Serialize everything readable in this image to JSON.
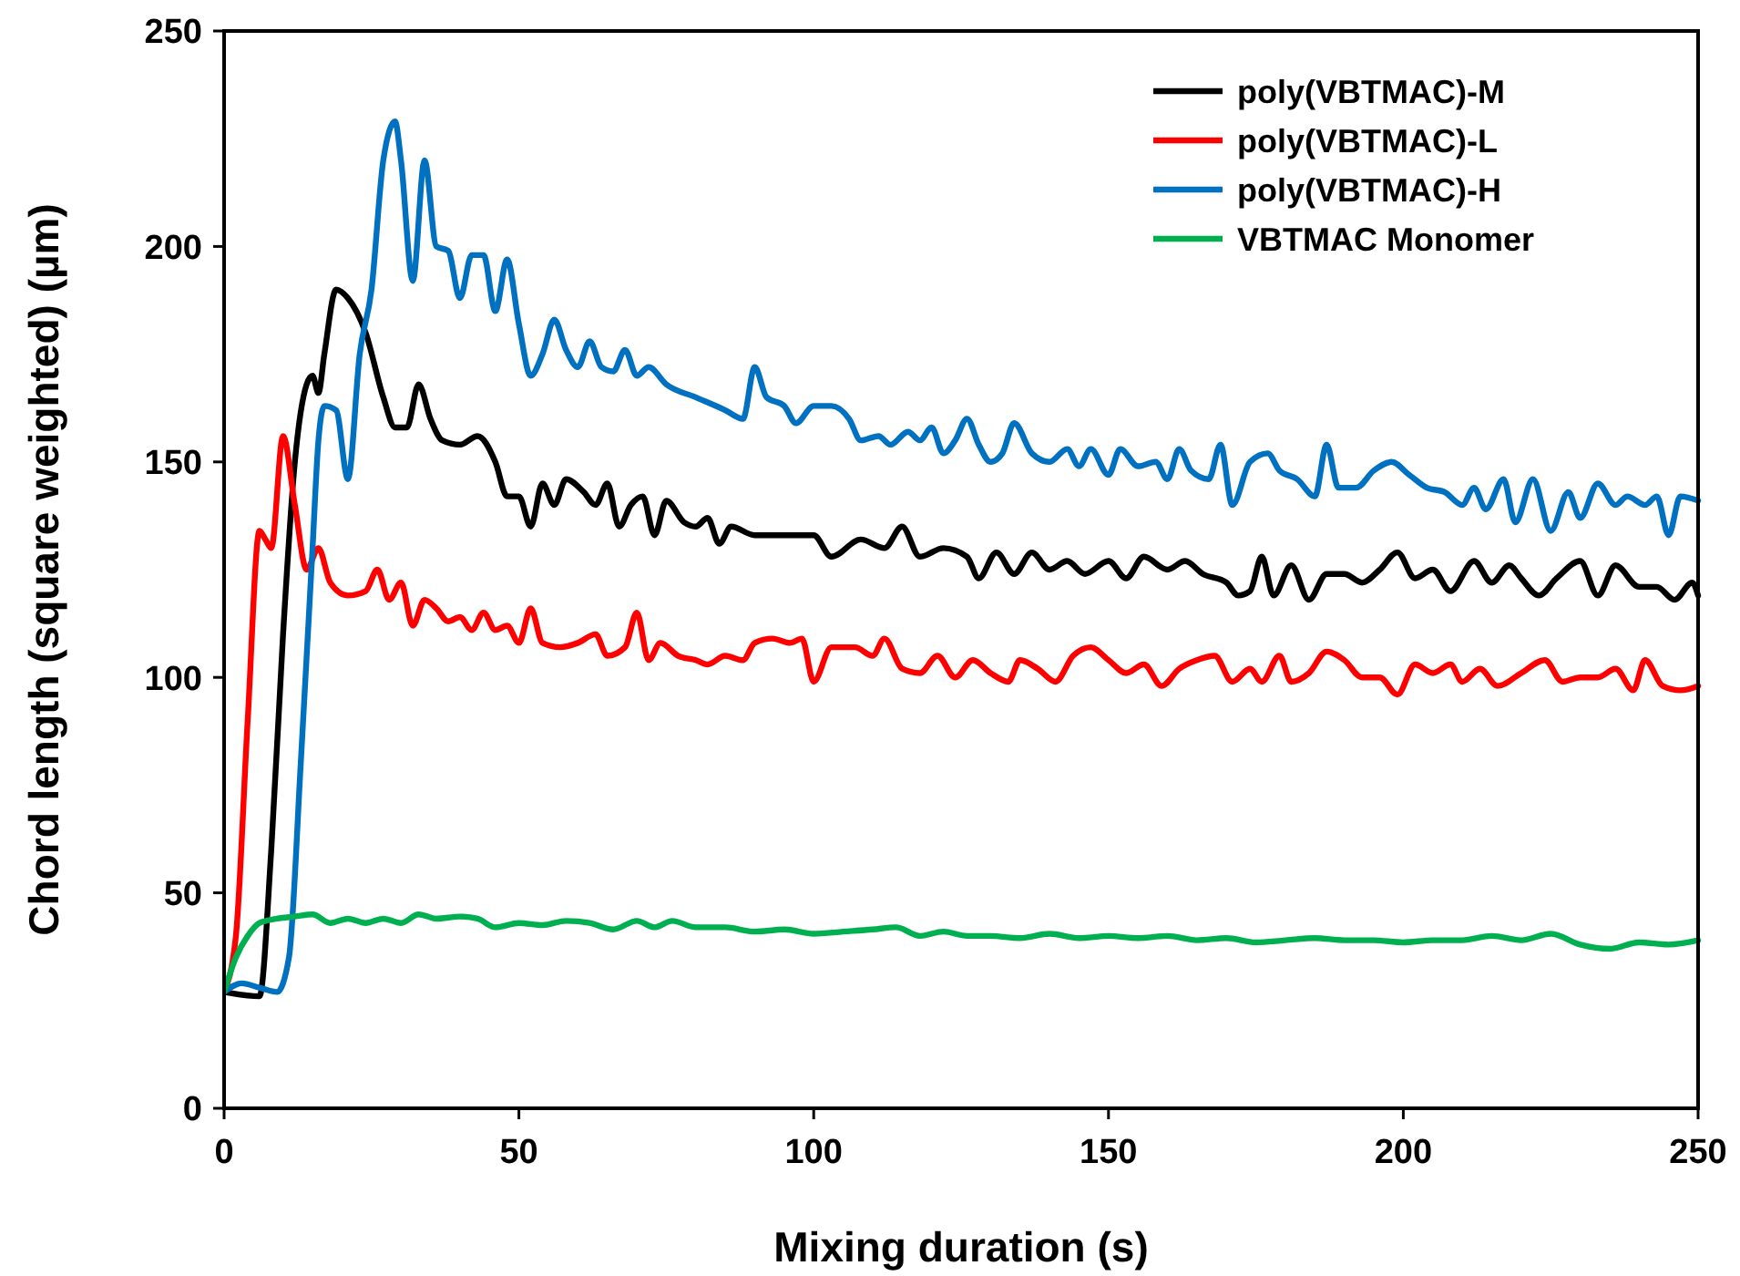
{
  "chart_data": {
    "type": "line",
    "xlabel": "Mixing duration (s)",
    "ylabel": "Chord length (square weighted) (µm)",
    "xlim": [
      0,
      250
    ],
    "xticks": [
      0,
      50,
      100,
      150,
      200,
      250
    ],
    "ylim": [
      0,
      250
    ],
    "yticks": [
      0,
      50,
      100,
      150,
      200,
      250
    ],
    "grid": false,
    "legend": "top right",
    "marker": "none",
    "line_style": "solid",
    "series": [
      {
        "name": "poly(VBTMAC)-M",
        "color": "#000000",
        "x": [
          0,
          6,
          8,
          10,
          12,
          14,
          15,
          16,
          17,
          19,
          21,
          24,
          27,
          29,
          31,
          33,
          35,
          37,
          40,
          43,
          46,
          48,
          50,
          52,
          54,
          56,
          58,
          61,
          63,
          65,
          67,
          69,
          71,
          73,
          75,
          78,
          80,
          82,
          84,
          86,
          90,
          95,
          100,
          103,
          108,
          112,
          115,
          118,
          122,
          126,
          128,
          131,
          134,
          137,
          140,
          143,
          146,
          150,
          153,
          156,
          160,
          163,
          166,
          170,
          172,
          174,
          176,
          178,
          181,
          184,
          187,
          190,
          193,
          196,
          199,
          202,
          205,
          208,
          212,
          215,
          218,
          220,
          223,
          226,
          230,
          233,
          236,
          240,
          243,
          246,
          249,
          250
        ],
        "values": [
          27,
          26,
          60,
          110,
          150,
          168,
          170,
          166,
          175,
          190,
          188,
          180,
          165,
          158,
          158,
          168,
          160,
          155,
          154,
          156,
          150,
          142,
          142,
          135,
          145,
          140,
          146,
          143,
          140,
          145,
          135,
          140,
          142,
          133,
          141,
          136,
          135,
          137,
          131,
          135,
          133,
          133,
          133,
          128,
          132,
          130,
          135,
          128,
          130,
          128,
          123,
          129,
          124,
          129,
          125,
          127,
          124,
          127,
          123,
          128,
          125,
          127,
          124,
          122,
          119,
          120,
          128,
          119,
          126,
          118,
          124,
          124,
          122,
          125,
          129,
          123,
          125,
          120,
          127,
          122,
          126,
          123,
          119,
          123,
          127,
          119,
          126,
          121,
          121,
          118,
          122,
          119
        ]
      },
      {
        "name": "poly(VBTMAC)-L",
        "color": "#ff0000",
        "x": [
          0,
          2,
          4,
          6,
          7,
          8,
          10,
          12,
          14,
          16,
          18,
          21,
          24,
          26,
          28,
          30,
          32,
          34,
          36,
          38,
          40,
          42,
          44,
          46,
          48,
          50,
          52,
          54,
          57,
          60,
          63,
          65,
          68,
          70,
          72,
          74,
          77,
          80,
          82,
          85,
          88,
          90,
          93,
          96,
          98,
          100,
          103,
          107,
          110,
          112,
          115,
          118,
          121,
          124,
          127,
          130,
          133,
          135,
          138,
          141,
          144,
          147,
          150,
          153,
          156,
          159,
          162,
          165,
          168,
          171,
          174,
          176,
          179,
          181,
          184,
          187,
          190,
          193,
          196,
          199,
          202,
          205,
          208,
          210,
          213,
          216,
          220,
          224,
          227,
          230,
          233,
          236,
          239,
          241,
          244,
          247,
          250
        ],
        "values": [
          27,
          40,
          90,
          134,
          132,
          130,
          156,
          140,
          125,
          130,
          122,
          119,
          120,
          125,
          118,
          122,
          112,
          118,
          116,
          113,
          114,
          111,
          115,
          111,
          112,
          108,
          116,
          108,
          107,
          108,
          110,
          105,
          107,
          115,
          104,
          108,
          105,
          104,
          103,
          105,
          104,
          108,
          109,
          108,
          109,
          99,
          107,
          107,
          105,
          109,
          102,
          101,
          105,
          100,
          104,
          101,
          99,
          104,
          102,
          99,
          105,
          107,
          104,
          101,
          103,
          98,
          102,
          104,
          105,
          99,
          102,
          99,
          105,
          99,
          101,
          106,
          104,
          100,
          100,
          96,
          103,
          101,
          103,
          99,
          102,
          98,
          101,
          104,
          99,
          100,
          100,
          102,
          97,
          104,
          98,
          97,
          98
        ]
      },
      {
        "name": "poly(VBTMAC)-H",
        "color": "#0070c0",
        "x": [
          0,
          3,
          6,
          9,
          11,
          13,
          15,
          16,
          17,
          19,
          21,
          23,
          25,
          27,
          29,
          30,
          32,
          34,
          36,
          38,
          40,
          42,
          44,
          46,
          48,
          50,
          52,
          54,
          56,
          58,
          60,
          62,
          64,
          66,
          68,
          70,
          72,
          75,
          80,
          85,
          88,
          90,
          92,
          95,
          97,
          100,
          103,
          106,
          108,
          111,
          113,
          116,
          118,
          120,
          122,
          124,
          126,
          128,
          130,
          132,
          134,
          137,
          140,
          143,
          145,
          147,
          150,
          152,
          155,
          158,
          160,
          162,
          164,
          167,
          169,
          171,
          174,
          177,
          179,
          182,
          185,
          187,
          189,
          192,
          195,
          198,
          201,
          204,
          207,
          210,
          212,
          214,
          217,
          219,
          222,
          225,
          228,
          230,
          233,
          236,
          238,
          241,
          243,
          245,
          247,
          250
        ],
        "values": [
          27,
          29,
          28,
          27,
          35,
          80,
          130,
          155,
          163,
          162,
          146,
          175,
          190,
          220,
          229,
          220,
          192,
          220,
          200,
          199,
          188,
          198,
          198,
          185,
          197,
          182,
          170,
          175,
          183,
          176,
          172,
          178,
          172,
          171,
          176,
          170,
          172,
          168,
          165,
          162,
          160,
          172,
          165,
          163,
          159,
          163,
          163,
          160,
          155,
          156,
          154,
          157,
          155,
          158,
          152,
          155,
          160,
          154,
          150,
          152,
          159,
          152,
          150,
          153,
          149,
          153,
          147,
          153,
          149,
          150,
          146,
          153,
          148,
          146,
          154,
          140,
          150,
          152,
          148,
          146,
          142,
          154,
          144,
          144,
          148,
          150,
          147,
          144,
          143,
          140,
          144,
          139,
          146,
          136,
          146,
          134,
          143,
          137,
          145,
          140,
          142,
          140,
          142,
          133,
          142,
          141
        ]
      },
      {
        "name": "VBTMAC Monomer",
        "color": "#00b050",
        "x": [
          0,
          2,
          4,
          6,
          9,
          12,
          15,
          18,
          21,
          24,
          27,
          30,
          33,
          36,
          40,
          43,
          46,
          50,
          54,
          58,
          62,
          66,
          70,
          73,
          76,
          80,
          85,
          90,
          95,
          100,
          105,
          110,
          114,
          118,
          122,
          126,
          130,
          135,
          140,
          145,
          150,
          155,
          160,
          165,
          170,
          175,
          180,
          185,
          190,
          195,
          200,
          205,
          210,
          215,
          220,
          225,
          230,
          235,
          240,
          245,
          250
        ],
        "values": [
          27,
          35,
          40,
          43,
          44,
          44.5,
          45,
          43,
          44,
          43,
          44,
          43,
          45,
          44,
          44.5,
          44,
          42,
          43,
          42.5,
          43.5,
          43,
          41.5,
          43.5,
          42,
          43.5,
          42,
          42,
          41,
          41.5,
          40.5,
          41,
          41.5,
          42,
          40,
          41,
          40,
          40,
          39.5,
          40.5,
          39.5,
          40,
          39.5,
          40,
          39,
          39.5,
          38.5,
          39,
          39.5,
          39,
          39,
          38.5,
          39,
          39,
          40,
          39,
          40.5,
          38,
          37,
          38.5,
          38,
          39
        ]
      }
    ]
  }
}
